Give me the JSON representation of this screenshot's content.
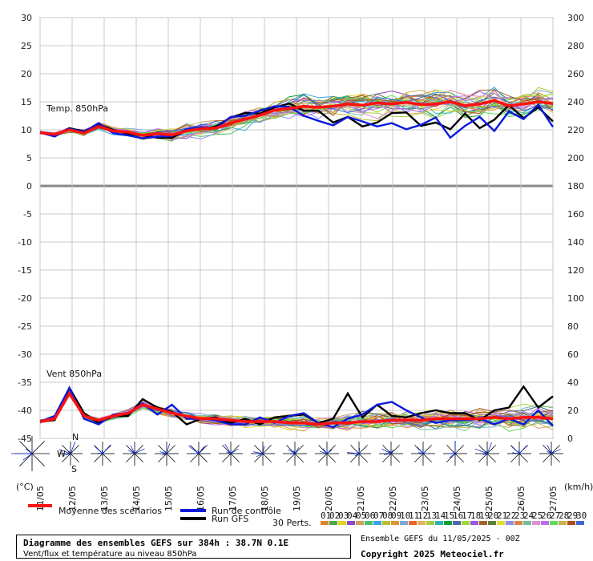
{
  "chart_data": {
    "type": "line",
    "left_axis": {
      "unit": "(°C)",
      "ticks": [
        30,
        25,
        20,
        15,
        10,
        5,
        0,
        -5,
        -10,
        -15,
        -20,
        -25,
        -30,
        -35,
        -40,
        -45
      ],
      "range": [
        -45,
        30
      ]
    },
    "right_axis": {
      "unit": "(km/h)",
      "ticks": [
        300,
        280,
        260,
        240,
        220,
        200,
        180,
        160,
        140,
        120,
        100,
        80,
        60,
        40,
        20,
        0
      ],
      "range": [
        0,
        300
      ]
    },
    "x_ticks": [
      "11/05",
      "12/05",
      "13/05",
      "14/05",
      "15/05",
      "16/05",
      "17/05",
      "18/05",
      "19/05",
      "20/05",
      "21/05",
      "22/05",
      "23/05",
      "24/05",
      "25/05",
      "26/05",
      "27/05"
    ],
    "panels": [
      {
        "name": "Temp. 850hPa",
        "mean_series": [
          9.5,
          9.2,
          10.0,
          9.4,
          10.6,
          9.8,
          9.6,
          9.0,
          9.3,
          9.1,
          9.8,
          10.2,
          10.3,
          11.2,
          11.9,
          12.6,
          13.5,
          13.8,
          14.2,
          14.0,
          14.2,
          14.6,
          14.4,
          14.8,
          14.6,
          14.9,
          14.5,
          14.6,
          15.0,
          14.3,
          14.6,
          15.2,
          14.3,
          14.6,
          15.0,
          14.7
        ],
        "control_series": [
          9.5,
          8.8,
          10.2,
          9.6,
          11.2,
          9.4,
          9.0,
          8.5,
          8.8,
          8.9,
          10.1,
          10.5,
          10.3,
          12.3,
          12.5,
          13.4,
          14.2,
          14.1,
          12.5,
          11.6,
          10.8,
          12.3,
          11.5,
          10.6,
          11.2,
          10.1,
          10.9,
          12.2,
          8.6,
          10.7,
          12.3,
          9.8,
          13.3,
          11.9,
          14.5,
          10.5
        ],
        "gfs_series": [
          9.5,
          8.9,
          10.3,
          9.7,
          11.0,
          10.0,
          9.3,
          9.0,
          8.6,
          8.6,
          9.9,
          10.1,
          10.6,
          12.2,
          13.0,
          12.9,
          14.0,
          14.7,
          13.4,
          13.4,
          11.3,
          12.3,
          10.6,
          11.3,
          13.0,
          13.1,
          10.7,
          11.3,
          10.1,
          12.9,
          10.3,
          11.8,
          14.4,
          12.1,
          14.0,
          11.5
        ]
      },
      {
        "name": "Vent 850hPa",
        "mean_series": [
          12,
          14,
          32,
          16,
          13,
          16,
          18,
          24,
          21,
          18,
          16,
          14,
          14,
          13,
          12,
          12,
          12,
          11,
          11,
          10,
          11,
          11,
          12,
          12,
          13,
          13,
          13,
          14,
          14,
          14,
          14,
          15,
          14,
          15,
          15,
          14
        ],
        "control_series": [
          12,
          16,
          36,
          14,
          10,
          17,
          18,
          25,
          17,
          24,
          14,
          14,
          13,
          10,
          10,
          15,
          11,
          16,
          18,
          11,
          8,
          14,
          17,
          24,
          26,
          20,
          15,
          11,
          13,
          13,
          14,
          10,
          14,
          10,
          20,
          9
        ],
        "gfs_series": [
          12,
          13,
          36,
          18,
          11,
          16,
          16,
          28,
          22,
          19,
          10,
          14,
          15,
          11,
          14,
          10,
          15,
          16,
          17,
          11,
          14,
          32,
          15,
          24,
          16,
          15,
          18,
          20,
          18,
          18,
          13,
          20,
          22,
          37,
          22,
          30
        ]
      }
    ],
    "perturbation_count": 30,
    "wind_roses": {
      "labels": [
        "N",
        "W",
        "S"
      ]
    }
  },
  "legend": {
    "mean": "Moyenne des scénarios",
    "control": "Run de contrôle",
    "gfs": "Run GFS",
    "perts": "30 Perts.",
    "pert_numbers": [
      "01",
      "02",
      "03",
      "04",
      "05",
      "06",
      "07",
      "08",
      "09",
      "10",
      "11",
      "12",
      "13",
      "14",
      "15",
      "16",
      "17",
      "18",
      "19",
      "20",
      "21",
      "22",
      "23",
      "24",
      "25",
      "26",
      "27",
      "28",
      "29",
      "30"
    ],
    "pert_colors": [
      "#e1852a",
      "#48a84a",
      "#e0d41d",
      "#9146c4",
      "#d19e5b",
      "#49c06b",
      "#3aa4e6",
      "#bdbd30",
      "#dc9436",
      "#7baad6",
      "#e96727",
      "#e6b35c",
      "#a9cd3c",
      "#31b2b5",
      "#0e9e31",
      "#4b6aa3",
      "#a3d83c",
      "#9c57de",
      "#a55f2c",
      "#5e7f3b",
      "#e0dd38",
      "#8f8ff0",
      "#db853e",
      "#71bd9b",
      "#dd8fd8",
      "#b76ff0",
      "#5ddc5b",
      "#c7b14f",
      "#ab4d1d",
      "#3c68d2"
    ]
  },
  "colors": {
    "mean": "#ff1010",
    "control": "#0a1adc",
    "gfs": "#000000",
    "grid": "#c8c8c8",
    "zero_line": "#888888",
    "rose": "#0a2ad6"
  },
  "footer": {
    "title": "Diagramme des ensembles GEFS sur 384h : 38.7N 0.1E",
    "subtitle": "Vent/flux et température au niveau 850hPa",
    "run_info": "Ensemble GEFS du 11/05/2025 - 00Z",
    "copyright": "Copyright 2025 Meteociel.fr"
  }
}
